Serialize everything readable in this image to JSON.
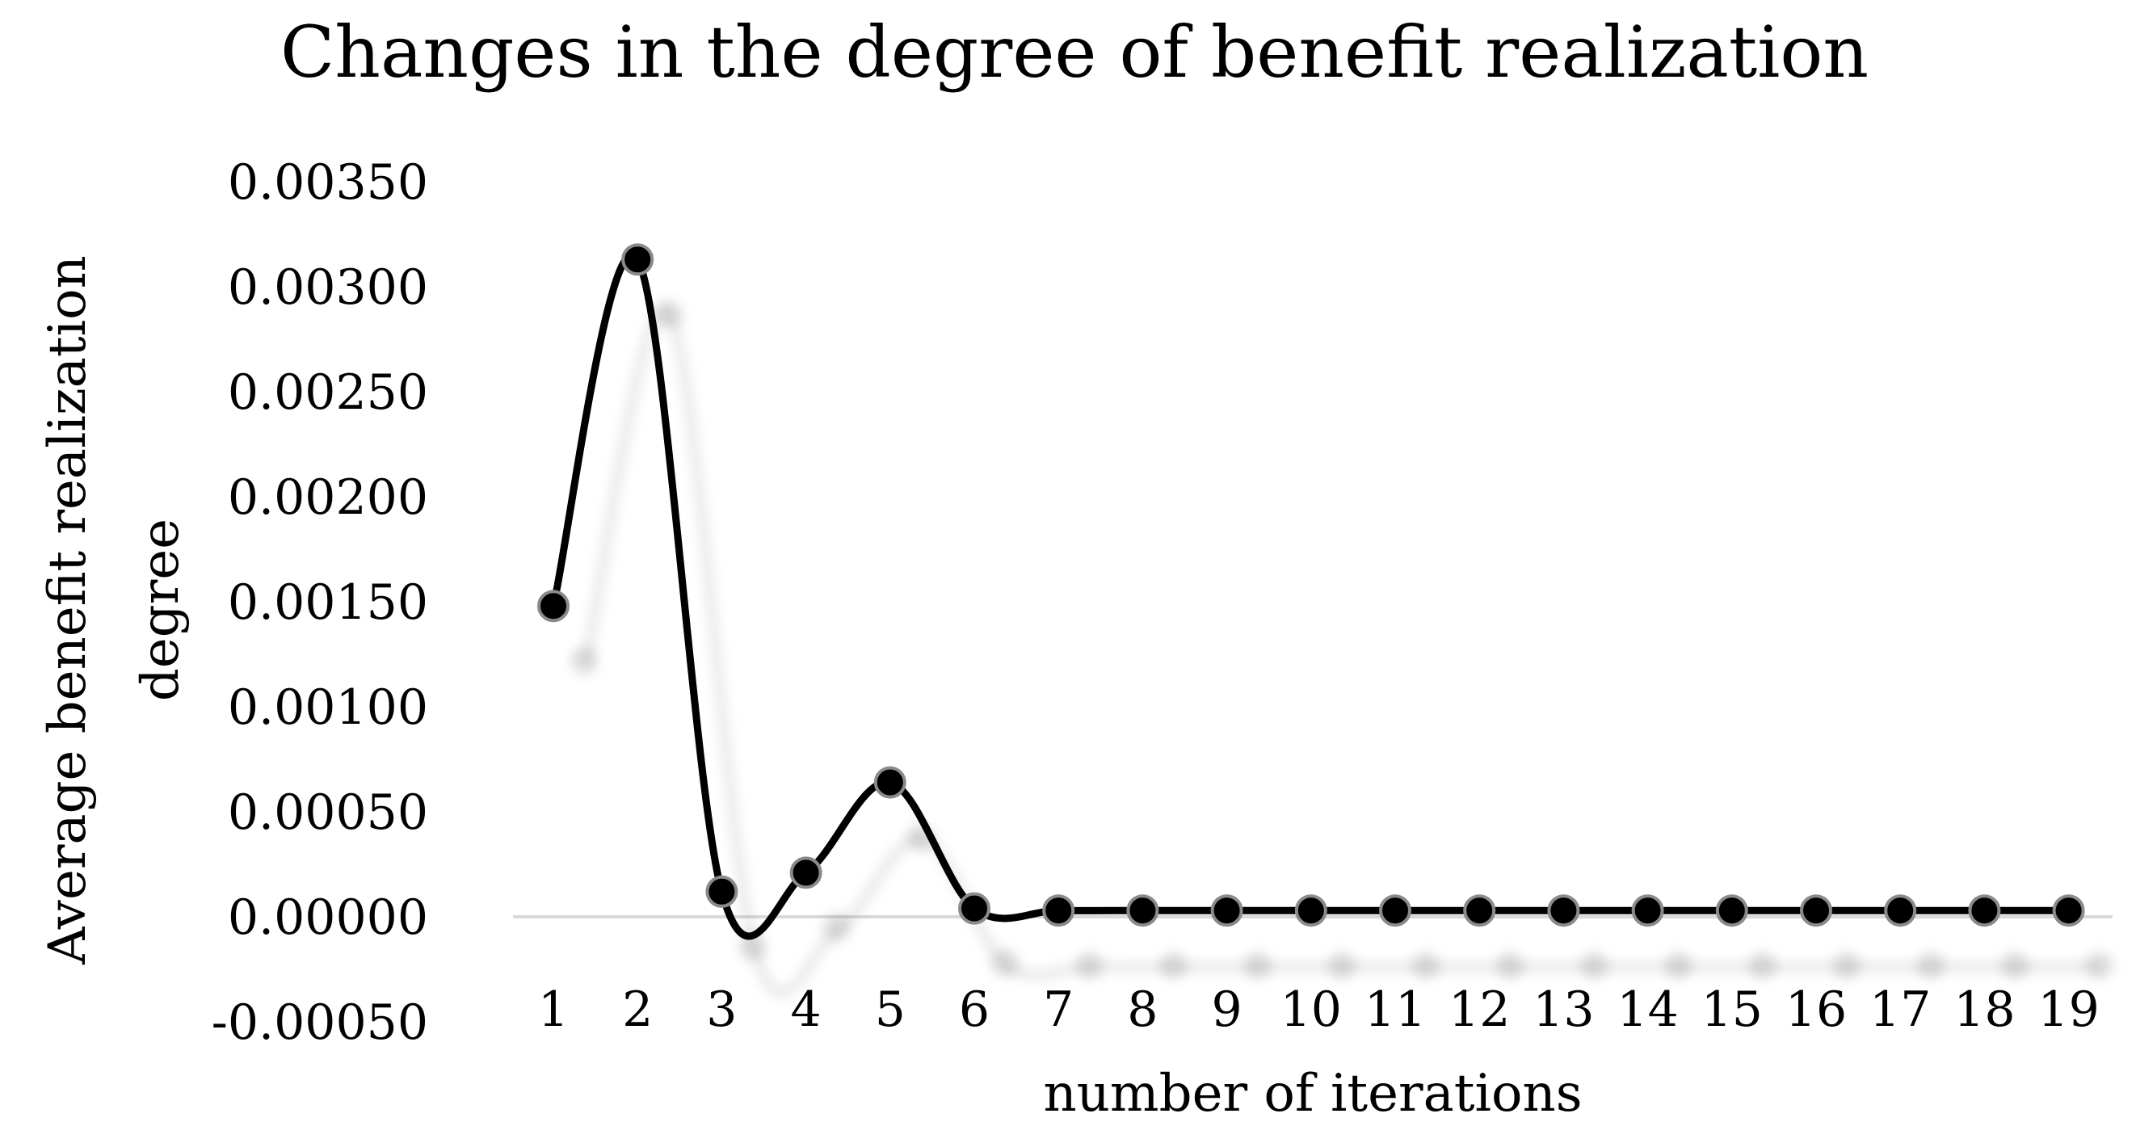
{
  "chart_data": {
    "type": "line",
    "title": "Changes in the degree of benefit realization",
    "xlabel": "number of iterations",
    "ylabel": "Average benefit realization degree",
    "ylabel_lines": [
      "Average benefit realization",
      "degree"
    ],
    "categories": [
      "1",
      "2",
      "3",
      "4",
      "5",
      "6",
      "7",
      "8",
      "9",
      "10",
      "11",
      "12",
      "13",
      "14",
      "15",
      "16",
      "17",
      "18",
      "19"
    ],
    "series": [
      {
        "values": [
          0.00148,
          0.00313,
          0.00012,
          0.00021,
          0.00064,
          4e-05,
          3e-05,
          3e-05,
          3e-05,
          3e-05,
          3e-05,
          3e-05,
          3e-05,
          3e-05,
          3e-05,
          3e-05,
          3e-05,
          3e-05,
          3e-05
        ],
        "color": "#000000"
      }
    ],
    "ylim": [
      -0.0005,
      0.0035
    ],
    "yticks": [
      {
        "value": 0.0035,
        "label": "0.00350"
      },
      {
        "value": 0.003,
        "label": "0.00300"
      },
      {
        "value": 0.0025,
        "label": "0.00250"
      },
      {
        "value": 0.002,
        "label": "0.00200"
      },
      {
        "value": 0.0015,
        "label": "0.00150"
      },
      {
        "value": 0.001,
        "label": "0.00100"
      },
      {
        "value": 0.0005,
        "label": "0.00050"
      },
      {
        "value": 0,
        "label": "0.00000"
      },
      {
        "value": -0.0005,
        "label": "-0.00050"
      }
    ],
    "grid": false,
    "smooth": true,
    "zero_line_color": "#d9d9d9"
  }
}
